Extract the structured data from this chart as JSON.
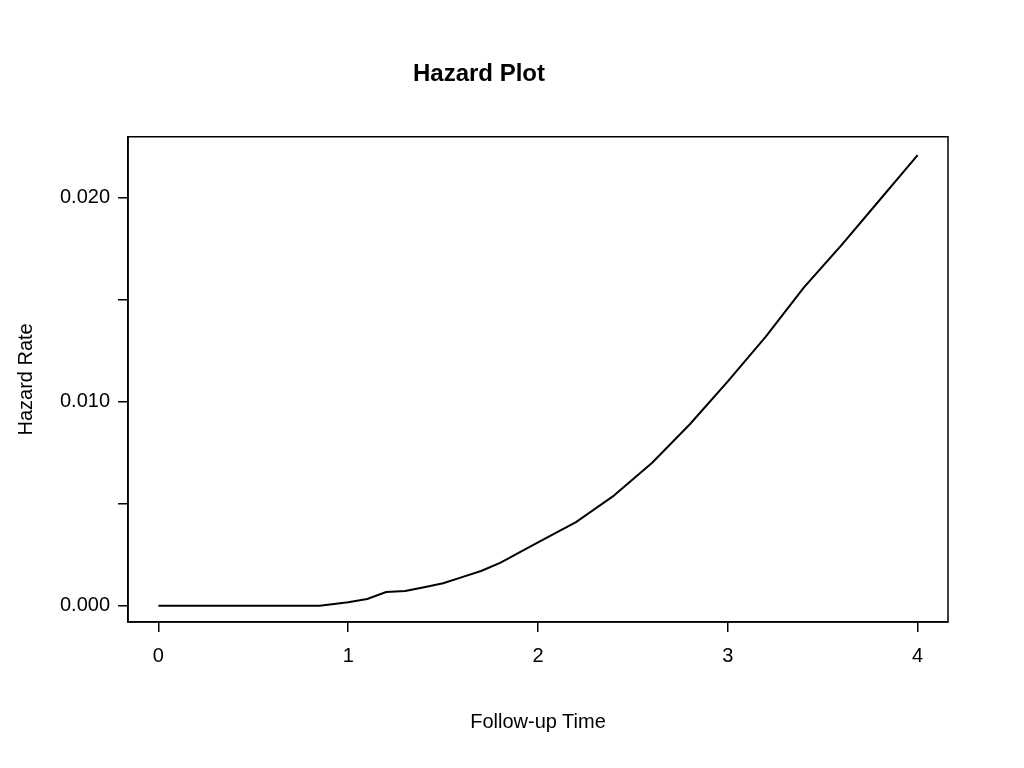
{
  "chart_data": {
    "type": "line",
    "title": "Hazard Plot",
    "xlabel": "Follow-up Time",
    "ylabel": "Hazard Rate",
    "x": [
      0,
      0.85,
      1.0,
      1.1,
      1.2,
      1.3,
      1.4,
      1.5,
      1.6,
      1.7,
      1.8,
      1.9,
      2.0,
      2.2,
      2.4,
      2.6,
      2.8,
      3.0,
      3.2,
      3.4,
      3.6,
      3.8,
      4.0
    ],
    "series": [
      {
        "color": "#000000",
        "values": [
          0,
          0,
          0.00017,
          0.00033,
          0.00067,
          0.00072,
          0.0009,
          0.0011,
          0.0014,
          0.0017,
          0.0021,
          0.0026,
          0.0031,
          0.0041,
          0.0054,
          0.007,
          0.0089,
          0.011,
          0.0132,
          0.0156,
          0.0177,
          0.0199,
          0.0221
        ]
      }
    ],
    "xlim": [
      -0.16,
      4.16
    ],
    "ylim": [
      -0.0008,
      0.023
    ],
    "xticks": [
      0,
      1,
      2,
      3,
      4
    ],
    "yticks": [
      {
        "value": 0,
        "label": "0.000"
      },
      {
        "value": 0.005,
        "label": null
      },
      {
        "value": 0.01,
        "label": "0.010"
      },
      {
        "value": 0.015,
        "label": null
      },
      {
        "value": 0.02,
        "label": "0.020"
      }
    ],
    "grid": false,
    "legend": false,
    "marker": "none",
    "line_style": "solid"
  }
}
